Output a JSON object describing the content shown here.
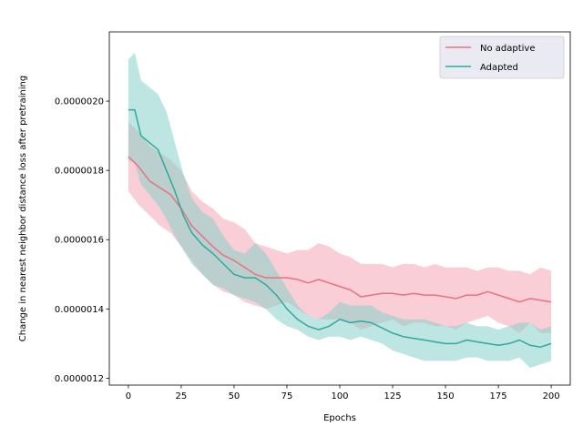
{
  "chart_data": {
    "type": "line",
    "title": "",
    "xlabel": "Epochs",
    "ylabel": "Change in nearest neighbor distance loss after pretraining",
    "xlim": [
      -9,
      209
    ],
    "ylim": [
      1.18e-06,
      2.2e-06
    ],
    "xticks": [
      0,
      25,
      50,
      75,
      100,
      125,
      150,
      175,
      200
    ],
    "yticks": [
      1.2e-06,
      1.4e-06,
      1.6e-06,
      1.8e-06,
      2e-06
    ],
    "ytick_labels": [
      "0.0000012",
      "0.0000014",
      "0.0000016",
      "0.0000018",
      "0.0000020"
    ],
    "grid": false,
    "legend_position": "top-right",
    "series": [
      {
        "name": "No adaptive",
        "color": "#e8727e",
        "band_color": "#f4a6b4",
        "points": [
          [
            0,
            1.84e-06
          ],
          [
            5,
            1.81e-06
          ],
          [
            10,
            1.77e-06
          ],
          [
            15,
            1.75e-06
          ],
          [
            20,
            1.73e-06
          ],
          [
            25,
            1.69e-06
          ],
          [
            30,
            1.64e-06
          ],
          [
            35,
            1.61e-06
          ],
          [
            40,
            1.58e-06
          ],
          [
            45,
            1.555e-06
          ],
          [
            50,
            1.54e-06
          ],
          [
            55,
            1.52e-06
          ],
          [
            60,
            1.5e-06
          ],
          [
            65,
            1.49e-06
          ],
          [
            70,
            1.49e-06
          ],
          [
            75,
            1.49e-06
          ],
          [
            80,
            1.485e-06
          ],
          [
            85,
            1.475e-06
          ],
          [
            90,
            1.485e-06
          ],
          [
            95,
            1.475e-06
          ],
          [
            100,
            1.465e-06
          ],
          [
            105,
            1.455e-06
          ],
          [
            110,
            1.435e-06
          ],
          [
            115,
            1.44e-06
          ],
          [
            120,
            1.445e-06
          ],
          [
            125,
            1.445e-06
          ],
          [
            130,
            1.44e-06
          ],
          [
            135,
            1.445e-06
          ],
          [
            140,
            1.44e-06
          ],
          [
            145,
            1.44e-06
          ],
          [
            150,
            1.435e-06
          ],
          [
            155,
            1.43e-06
          ],
          [
            160,
            1.44e-06
          ],
          [
            165,
            1.44e-06
          ],
          [
            170,
            1.45e-06
          ],
          [
            175,
            1.44e-06
          ],
          [
            180,
            1.43e-06
          ],
          [
            185,
            1.42e-06
          ],
          [
            190,
            1.43e-06
          ],
          [
            195,
            1.425e-06
          ],
          [
            200,
            1.42e-06
          ]
        ],
        "lower": [
          [
            0,
            1.74e-06
          ],
          [
            5,
            1.7e-06
          ],
          [
            10,
            1.67e-06
          ],
          [
            15,
            1.64e-06
          ],
          [
            20,
            1.62e-06
          ],
          [
            25,
            1.58e-06
          ],
          [
            30,
            1.54e-06
          ],
          [
            35,
            1.5e-06
          ],
          [
            40,
            1.47e-06
          ],
          [
            45,
            1.45e-06
          ],
          [
            50,
            1.44e-06
          ],
          [
            55,
            1.42e-06
          ],
          [
            60,
            1.41e-06
          ],
          [
            65,
            1.4e-06
          ],
          [
            70,
            1.41e-06
          ],
          [
            75,
            1.42e-06
          ],
          [
            80,
            1.4e-06
          ],
          [
            85,
            1.38e-06
          ],
          [
            90,
            1.37e-06
          ],
          [
            95,
            1.37e-06
          ],
          [
            100,
            1.37e-06
          ],
          [
            105,
            1.36e-06
          ],
          [
            110,
            1.34e-06
          ],
          [
            115,
            1.35e-06
          ],
          [
            120,
            1.36e-06
          ],
          [
            125,
            1.37e-06
          ],
          [
            130,
            1.35e-06
          ],
          [
            135,
            1.36e-06
          ],
          [
            140,
            1.36e-06
          ],
          [
            145,
            1.35e-06
          ],
          [
            150,
            1.35e-06
          ],
          [
            155,
            1.34e-06
          ],
          [
            160,
            1.36e-06
          ],
          [
            165,
            1.37e-06
          ],
          [
            170,
            1.38e-06
          ],
          [
            175,
            1.36e-06
          ],
          [
            180,
            1.35e-06
          ],
          [
            185,
            1.33e-06
          ],
          [
            190,
            1.36e-06
          ],
          [
            195,
            1.33e-06
          ],
          [
            200,
            1.33e-06
          ]
        ],
        "upper": [
          [
            0,
            1.94e-06
          ],
          [
            5,
            1.91e-06
          ],
          [
            10,
            1.87e-06
          ],
          [
            15,
            1.85e-06
          ],
          [
            20,
            1.83e-06
          ],
          [
            25,
            1.8e-06
          ],
          [
            30,
            1.74e-06
          ],
          [
            35,
            1.71e-06
          ],
          [
            40,
            1.69e-06
          ],
          [
            45,
            1.66e-06
          ],
          [
            50,
            1.65e-06
          ],
          [
            55,
            1.63e-06
          ],
          [
            60,
            1.59e-06
          ],
          [
            65,
            1.58e-06
          ],
          [
            70,
            1.57e-06
          ],
          [
            75,
            1.56e-06
          ],
          [
            80,
            1.57e-06
          ],
          [
            85,
            1.57e-06
          ],
          [
            90,
            1.59e-06
          ],
          [
            95,
            1.58e-06
          ],
          [
            100,
            1.56e-06
          ],
          [
            105,
            1.55e-06
          ],
          [
            110,
            1.53e-06
          ],
          [
            115,
            1.53e-06
          ],
          [
            120,
            1.53e-06
          ],
          [
            125,
            1.52e-06
          ],
          [
            130,
            1.53e-06
          ],
          [
            135,
            1.53e-06
          ],
          [
            140,
            1.52e-06
          ],
          [
            145,
            1.53e-06
          ],
          [
            150,
            1.52e-06
          ],
          [
            155,
            1.52e-06
          ],
          [
            160,
            1.52e-06
          ],
          [
            165,
            1.51e-06
          ],
          [
            170,
            1.52e-06
          ],
          [
            175,
            1.52e-06
          ],
          [
            180,
            1.51e-06
          ],
          [
            185,
            1.51e-06
          ],
          [
            190,
            1.5e-06
          ],
          [
            195,
            1.52e-06
          ],
          [
            200,
            1.51e-06
          ]
        ]
      },
      {
        "name": "Adapted",
        "color": "#31a99d",
        "band_color": "#86cfc8",
        "points": [
          [
            0,
            1.975e-06
          ],
          [
            3,
            1.975e-06
          ],
          [
            6,
            1.9e-06
          ],
          [
            10,
            1.88e-06
          ],
          [
            14,
            1.86e-06
          ],
          [
            18,
            1.8e-06
          ],
          [
            22,
            1.74e-06
          ],
          [
            26,
            1.67e-06
          ],
          [
            30,
            1.62e-06
          ],
          [
            35,
            1.585e-06
          ],
          [
            40,
            1.56e-06
          ],
          [
            45,
            1.53e-06
          ],
          [
            50,
            1.5e-06
          ],
          [
            55,
            1.49e-06
          ],
          [
            60,
            1.49e-06
          ],
          [
            65,
            1.47e-06
          ],
          [
            70,
            1.44e-06
          ],
          [
            75,
            1.4e-06
          ],
          [
            80,
            1.37e-06
          ],
          [
            85,
            1.35e-06
          ],
          [
            90,
            1.34e-06
          ],
          [
            95,
            1.35e-06
          ],
          [
            100,
            1.37e-06
          ],
          [
            105,
            1.36e-06
          ],
          [
            110,
            1.365e-06
          ],
          [
            115,
            1.36e-06
          ],
          [
            120,
            1.345e-06
          ],
          [
            125,
            1.33e-06
          ],
          [
            130,
            1.32e-06
          ],
          [
            135,
            1.315e-06
          ],
          [
            140,
            1.31e-06
          ],
          [
            145,
            1.305e-06
          ],
          [
            150,
            1.3e-06
          ],
          [
            155,
            1.3e-06
          ],
          [
            160,
            1.31e-06
          ],
          [
            165,
            1.305e-06
          ],
          [
            170,
            1.3e-06
          ],
          [
            175,
            1.295e-06
          ],
          [
            180,
            1.3e-06
          ],
          [
            185,
            1.31e-06
          ],
          [
            190,
            1.295e-06
          ],
          [
            195,
            1.29e-06
          ],
          [
            200,
            1.3e-06
          ]
        ],
        "lower": [
          [
            0,
            1.83e-06
          ],
          [
            3,
            1.82e-06
          ],
          [
            6,
            1.76e-06
          ],
          [
            10,
            1.73e-06
          ],
          [
            14,
            1.7e-06
          ],
          [
            18,
            1.66e-06
          ],
          [
            22,
            1.61e-06
          ],
          [
            26,
            1.57e-06
          ],
          [
            30,
            1.53e-06
          ],
          [
            35,
            1.5e-06
          ],
          [
            40,
            1.47e-06
          ],
          [
            45,
            1.46e-06
          ],
          [
            50,
            1.44e-06
          ],
          [
            55,
            1.43e-06
          ],
          [
            60,
            1.42e-06
          ],
          [
            65,
            1.4e-06
          ],
          [
            70,
            1.37e-06
          ],
          [
            75,
            1.35e-06
          ],
          [
            80,
            1.34e-06
          ],
          [
            85,
            1.32e-06
          ],
          [
            90,
            1.31e-06
          ],
          [
            95,
            1.32e-06
          ],
          [
            100,
            1.32e-06
          ],
          [
            105,
            1.31e-06
          ],
          [
            110,
            1.32e-06
          ],
          [
            115,
            1.31e-06
          ],
          [
            120,
            1.3e-06
          ],
          [
            125,
            1.28e-06
          ],
          [
            130,
            1.27e-06
          ],
          [
            135,
            1.26e-06
          ],
          [
            140,
            1.25e-06
          ],
          [
            145,
            1.25e-06
          ],
          [
            150,
            1.25e-06
          ],
          [
            155,
            1.25e-06
          ],
          [
            160,
            1.26e-06
          ],
          [
            165,
            1.26e-06
          ],
          [
            170,
            1.25e-06
          ],
          [
            175,
            1.25e-06
          ],
          [
            180,
            1.25e-06
          ],
          [
            185,
            1.26e-06
          ],
          [
            190,
            1.23e-06
          ],
          [
            195,
            1.24e-06
          ],
          [
            200,
            1.25e-06
          ]
        ],
        "upper": [
          [
            0,
            2.12e-06
          ],
          [
            3,
            2.14e-06
          ],
          [
            6,
            2.06e-06
          ],
          [
            10,
            2.04e-06
          ],
          [
            14,
            2.02e-06
          ],
          [
            18,
            1.97e-06
          ],
          [
            22,
            1.88e-06
          ],
          [
            26,
            1.79e-06
          ],
          [
            30,
            1.72e-06
          ],
          [
            35,
            1.68e-06
          ],
          [
            40,
            1.66e-06
          ],
          [
            45,
            1.61e-06
          ],
          [
            50,
            1.57e-06
          ],
          [
            55,
            1.56e-06
          ],
          [
            60,
            1.59e-06
          ],
          [
            65,
            1.56e-06
          ],
          [
            70,
            1.51e-06
          ],
          [
            75,
            1.46e-06
          ],
          [
            80,
            1.41e-06
          ],
          [
            85,
            1.38e-06
          ],
          [
            90,
            1.37e-06
          ],
          [
            95,
            1.39e-06
          ],
          [
            100,
            1.42e-06
          ],
          [
            105,
            1.41e-06
          ],
          [
            110,
            1.41e-06
          ],
          [
            115,
            1.41e-06
          ],
          [
            120,
            1.39e-06
          ],
          [
            125,
            1.38e-06
          ],
          [
            130,
            1.37e-06
          ],
          [
            135,
            1.37e-06
          ],
          [
            140,
            1.37e-06
          ],
          [
            145,
            1.36e-06
          ],
          [
            150,
            1.35e-06
          ],
          [
            155,
            1.35e-06
          ],
          [
            160,
            1.36e-06
          ],
          [
            165,
            1.35e-06
          ],
          [
            170,
            1.35e-06
          ],
          [
            175,
            1.34e-06
          ],
          [
            180,
            1.35e-06
          ],
          [
            185,
            1.36e-06
          ],
          [
            190,
            1.36e-06
          ],
          [
            195,
            1.34e-06
          ],
          [
            200,
            1.35e-06
          ]
        ]
      }
    ]
  }
}
